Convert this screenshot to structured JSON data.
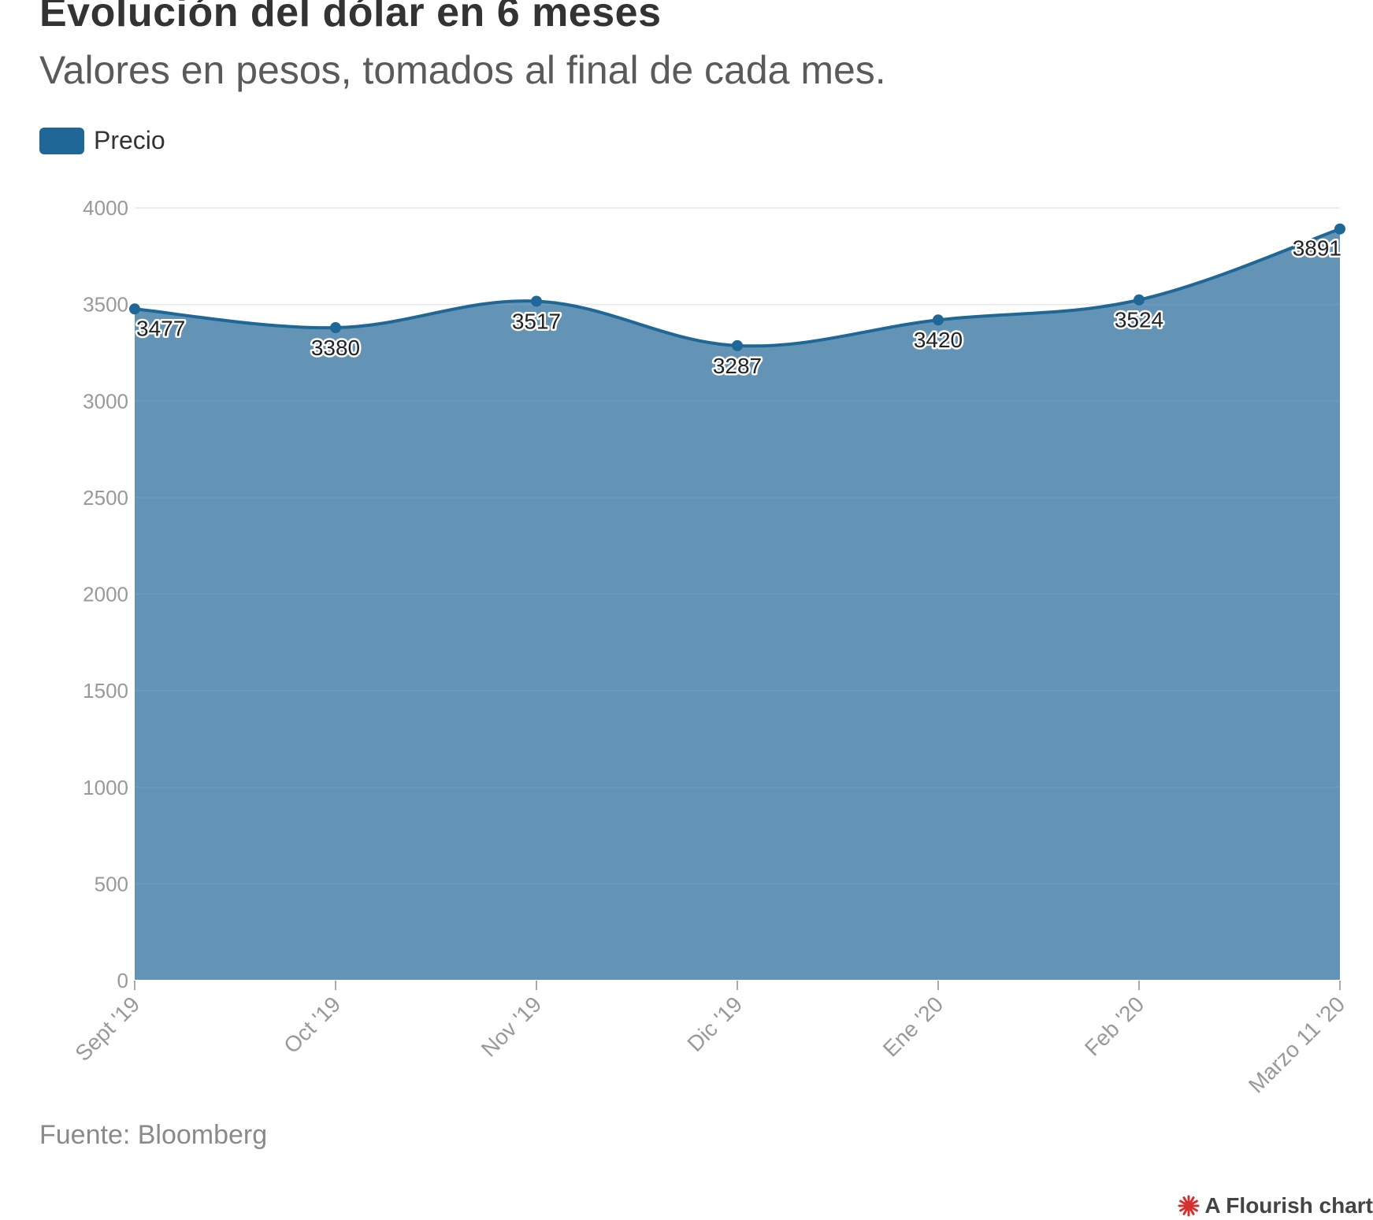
{
  "title": "Evolución del dólar en 6 meses",
  "subtitle": "Valores en pesos, tomados al final de cada mes.",
  "legend": {
    "label": "Precio",
    "color": "#1f6797"
  },
  "source": "Fuente: Bloomberg",
  "credit": "A Flourish chart",
  "colors": {
    "area_fill": "#6394b6",
    "line": "#1f6797",
    "grid": "#e6e6e6",
    "tick_text": "#999999",
    "credit_icon": "#d62f2f"
  },
  "icons": {
    "credit": "flourish-logo-icon"
  },
  "chart_data": {
    "type": "area",
    "categories": [
      "Sept '19",
      "Oct '19",
      "Nov '19",
      "Dic '19",
      "Ene '20",
      "Feb '20",
      "Marzo 11 '20"
    ],
    "series": [
      {
        "name": "Precio",
        "values": [
          3477,
          3380,
          3517,
          3287,
          3420,
          3524,
          3891
        ]
      }
    ],
    "data_labels": [
      "3477",
      "3380",
      "3517",
      "3287",
      "3420",
      "3524",
      "3891"
    ],
    "y_ticks": [
      "0",
      "500",
      "1000",
      "1500",
      "2000",
      "2500",
      "3000",
      "3500",
      "4000"
    ],
    "ylim": [
      0,
      4000
    ],
    "grid": true,
    "legend_position": "top-left",
    "curve": "smooth"
  }
}
